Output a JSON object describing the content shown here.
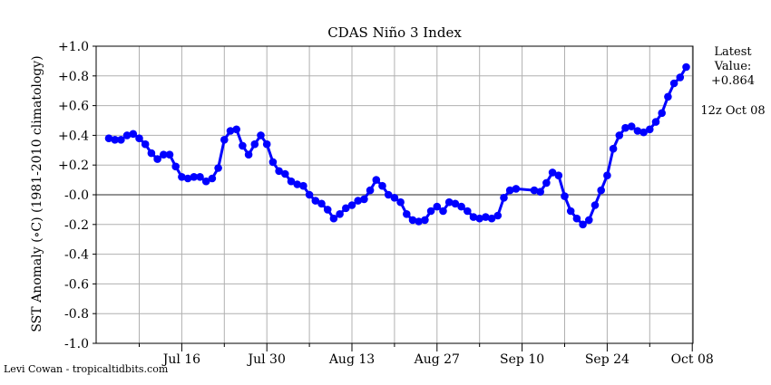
{
  "chart_data": {
    "type": "line",
    "title": "CDAS Niño 3 Index",
    "ylabel": "SST Anomaly (∘C) (1981-2010 climatology)",
    "xlabel": "",
    "ylim": [
      -1.0,
      1.0
    ],
    "yticks": [
      "+1.0",
      "+0.8",
      "+0.6",
      "+0.4",
      "+0.2",
      "-0.0",
      "-0.2",
      "-0.4",
      "-0.6",
      "-0.8",
      "-1.0"
    ],
    "xticks": [
      "Jul 16",
      "Jul 30",
      "Aug 13",
      "Aug 27",
      "Sep 10",
      "Sep 24",
      "Oct 08"
    ],
    "x_start_label": "Jul 04",
    "grid": true,
    "series": [
      {
        "color": "#0000ff",
        "values": [
          [
            "Jul 04",
            0.38
          ],
          [
            "Jul 05",
            0.37
          ],
          [
            "Jul 06",
            0.37
          ],
          [
            "Jul 07",
            0.4
          ],
          [
            "Jul 08",
            0.41
          ],
          [
            "Jul 09",
            0.38
          ],
          [
            "Jul 10",
            0.34
          ],
          [
            "Jul 11",
            0.28
          ],
          [
            "Jul 12",
            0.24
          ],
          [
            "Jul 13",
            0.27
          ],
          [
            "Jul 14",
            0.27
          ],
          [
            "Jul 15",
            0.19
          ],
          [
            "Jul 16",
            0.12
          ],
          [
            "Jul 17",
            0.11
          ],
          [
            "Jul 18",
            0.12
          ],
          [
            "Jul 19",
            0.12
          ],
          [
            "Jul 20",
            0.09
          ],
          [
            "Jul 21",
            0.11
          ],
          [
            "Jul 22",
            0.18
          ],
          [
            "Jul 23",
            0.37
          ],
          [
            "Jul 24",
            0.43
          ],
          [
            "Jul 25",
            0.44
          ],
          [
            "Jul 26",
            0.33
          ],
          [
            "Jul 27",
            0.27
          ],
          [
            "Jul 28",
            0.34
          ],
          [
            "Jul 29",
            0.4
          ],
          [
            "Jul 30",
            0.34
          ],
          [
            "Jul 31",
            0.22
          ],
          [
            "Aug 01",
            0.16
          ],
          [
            "Aug 02",
            0.14
          ],
          [
            "Aug 03",
            0.09
          ],
          [
            "Aug 04",
            0.07
          ],
          [
            "Aug 05",
            0.06
          ],
          [
            "Aug 06",
            0.0
          ],
          [
            "Aug 07",
            -0.04
          ],
          [
            "Aug 08",
            -0.06
          ],
          [
            "Aug 09",
            -0.1
          ],
          [
            "Aug 10",
            -0.16
          ],
          [
            "Aug 11",
            -0.13
          ],
          [
            "Aug 12",
            -0.09
          ],
          [
            "Aug 13",
            -0.07
          ],
          [
            "Aug 14",
            -0.04
          ],
          [
            "Aug 15",
            -0.03
          ],
          [
            "Aug 16",
            0.03
          ],
          [
            "Aug 17",
            0.1
          ],
          [
            "Aug 18",
            0.06
          ],
          [
            "Aug 19",
            0.0
          ],
          [
            "Aug 20",
            -0.02
          ],
          [
            "Aug 21",
            -0.05
          ],
          [
            "Aug 22",
            -0.13
          ],
          [
            "Aug 23",
            -0.17
          ],
          [
            "Aug 24",
            -0.18
          ],
          [
            "Aug 25",
            -0.17
          ],
          [
            "Aug 26",
            -0.11
          ],
          [
            "Aug 27",
            -0.08
          ],
          [
            "Aug 28",
            -0.11
          ],
          [
            "Aug 29",
            -0.05
          ],
          [
            "Aug 30",
            -0.06
          ],
          [
            "Aug 31",
            -0.08
          ],
          [
            "Sep 01",
            -0.11
          ],
          [
            "Sep 02",
            -0.15
          ],
          [
            "Sep 03",
            -0.16
          ],
          [
            "Sep 04",
            -0.15
          ],
          [
            "Sep 05",
            -0.16
          ],
          [
            "Sep 06",
            -0.14
          ],
          [
            "Sep 07",
            -0.02
          ],
          [
            "Sep 08",
            0.03
          ],
          [
            "Sep 09",
            0.04
          ],
          [
            "Sep 12",
            0.03
          ],
          [
            "Sep 13",
            0.02
          ],
          [
            "Sep 14",
            0.08
          ],
          [
            "Sep 15",
            0.15
          ],
          [
            "Sep 16",
            0.13
          ],
          [
            "Sep 17",
            -0.01
          ],
          [
            "Sep 18",
            -0.11
          ],
          [
            "Sep 19",
            -0.16
          ],
          [
            "Sep 20",
            -0.2
          ],
          [
            "Sep 21",
            -0.17
          ],
          [
            "Sep 22",
            -0.07
          ],
          [
            "Sep 23",
            0.03
          ],
          [
            "Sep 24",
            0.13
          ],
          [
            "Sep 25",
            0.31
          ],
          [
            "Sep 26",
            0.4
          ],
          [
            "Sep 27",
            0.45
          ],
          [
            "Sep 28",
            0.46
          ],
          [
            "Sep 29",
            0.43
          ],
          [
            "Sep 30",
            0.42
          ],
          [
            "Oct 01",
            0.44
          ],
          [
            "Oct 02",
            0.49
          ],
          [
            "Oct 03",
            0.55
          ],
          [
            "Oct 04",
            0.66
          ],
          [
            "Oct 05",
            0.75
          ],
          [
            "Oct 06",
            0.79
          ],
          [
            "Oct 07",
            0.86
          ]
        ]
      }
    ]
  },
  "side": {
    "latest_label": "Latest",
    "value_label": "Value:",
    "value": "+0.864",
    "timestamp": "12z Oct 08"
  },
  "credit": "Levi Cowan - tropicaltidbits.com"
}
